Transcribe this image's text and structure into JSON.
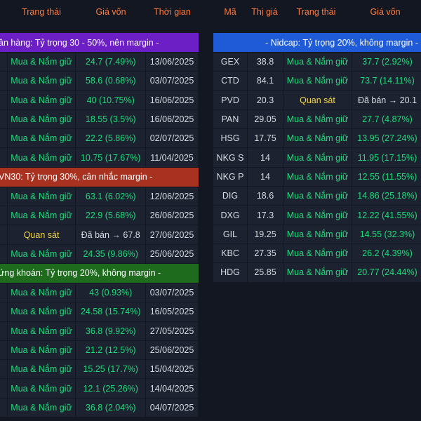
{
  "left_header": [
    "",
    "Trạng thái",
    "Giá vốn",
    "Thời gian"
  ],
  "right_header": [
    "Mã",
    "Thị giá",
    "Trạng thái",
    "Giá vốn"
  ],
  "left_groups": [
    {
      "title": "ân hàng: Tỷ trọng 30 - 50%, nên margin -",
      "color": "#6b1fc4",
      "rows": [
        {
          "code": "",
          "status": "Mua & Nắm giữ",
          "cost": "24.7  (7.49%)",
          "date": "13/06/2025"
        },
        {
          "code": "",
          "status": "Mua & Nắm giữ",
          "cost": "58.6  (0.68%)",
          "date": "03/07/2025"
        },
        {
          "code": "",
          "status": "Mua & Nắm giữ",
          "cost": "40  (10.75%)",
          "date": "16/06/2025"
        },
        {
          "code": "",
          "status": "Mua & Nắm giữ",
          "cost": "18.55  (3.5%)",
          "date": "16/06/2025"
        },
        {
          "code": "",
          "status": "Mua & Nắm giữ",
          "cost": "22.2  (5.86%)",
          "date": "02/07/2025"
        },
        {
          "code": "",
          "status": "Mua & Nắm giữ",
          "cost": "10.75  (17.67%)",
          "date": "11/04/2025"
        }
      ]
    },
    {
      "title": "VN30: Tỷ trọng 30%, cân nhắc margin -",
      "color": "#a8321f",
      "rows": [
        {
          "code": "",
          "status": "Mua & Nắm giữ",
          "cost": "63.1  (6.02%)",
          "date": "12/06/2025"
        },
        {
          "code": "",
          "status": "Mua & Nắm giữ",
          "cost": "22.9  (5.68%)",
          "date": "26/06/2025"
        },
        {
          "code": "",
          "status": "Quan sát",
          "cost": "Đã bán → 67.8",
          "date": "27/06/2025"
        },
        {
          "code": "",
          "status": "Mua & Nắm giữ",
          "cost": "24.35  (9.86%)",
          "date": "25/06/2025"
        }
      ]
    },
    {
      "title": "ứng khoán: Tỷ trọng 20%, không margin -",
      "color": "#1e6b1e",
      "rows": [
        {
          "code": "",
          "status": "Mua & Nắm giữ",
          "cost": "43  (0.93%)",
          "date": "03/07/2025"
        },
        {
          "code": "",
          "status": "Mua & Nắm giữ",
          "cost": "24.58  (15.74%)",
          "date": "16/05/2025"
        },
        {
          "code": "",
          "status": "Mua & Nắm giữ",
          "cost": "36.8  (9.92%)",
          "date": "27/05/2025"
        },
        {
          "code": "",
          "status": "Mua & Nắm giữ",
          "cost": "21.2  (12.5%)",
          "date": "25/06/2025"
        },
        {
          "code": "",
          "status": "Mua & Nắm giữ",
          "cost": "15.25  (17.7%)",
          "date": "15/04/2025"
        },
        {
          "code": "",
          "status": "Mua & Nắm giữ",
          "cost": "12.1  (25.26%)",
          "date": "14/04/2025"
        },
        {
          "code": "",
          "status": "Mua & Nắm giữ",
          "cost": "36.8  (2.04%)",
          "date": "04/07/2025"
        }
      ]
    }
  ],
  "right_group": {
    "title": "- Nidcap: Tỷ trọng 20%, không margin -",
    "color": "#1f5bd6",
    "rows": [
      {
        "code": "GEX",
        "price": "38.8",
        "status": "Mua & Nắm giữ",
        "cost": "37.7  (2.92%)"
      },
      {
        "code": "CTD",
        "price": "84.1",
        "status": "Mua & Nắm giữ",
        "cost": "73.7  (14.11%)"
      },
      {
        "code": "PVD",
        "price": "20.3",
        "status": "Quan sát",
        "cost": "Đã bán → 20.1"
      },
      {
        "code": "PAN",
        "price": "29.05",
        "status": "Mua & Nắm giữ",
        "cost": "27.7  (4.87%)"
      },
      {
        "code": "HSG",
        "price": "17.75",
        "status": "Mua & Nắm giữ",
        "cost": "13.95  (27.24%)"
      },
      {
        "code": "NKG S",
        "price": "14",
        "status": "Mua & Nắm giữ",
        "cost": "11.95  (17.15%)"
      },
      {
        "code": "NKG P",
        "price": "14",
        "status": "Mua & Nắm giữ",
        "cost": "12.55  (11.55%)"
      },
      {
        "code": "DIG",
        "price": "18.6",
        "status": "Mua & Nắm giữ",
        "cost": "14.86  (25.18%)"
      },
      {
        "code": "DXG",
        "price": "17.3",
        "status": "Mua & Nắm giữ",
        "cost": "12.22  (41.55%)"
      },
      {
        "code": "GIL",
        "price": "19.25",
        "status": "Mua & Nắm giữ",
        "cost": "14.55  (32.3%)"
      },
      {
        "code": "KBC",
        "price": "27.35",
        "status": "Mua & Nắm giữ",
        "cost": "26.2  (4.39%)"
      },
      {
        "code": "HDG",
        "price": "25.85",
        "status": "Mua & Nắm giữ",
        "cost": "20.77  (24.44%)"
      }
    ]
  },
  "colors": {
    "header_text": "#ff7a3d",
    "positive": "#1fdc7a",
    "watch": "#f0d24b",
    "cell_bg": "#1c222f"
  }
}
